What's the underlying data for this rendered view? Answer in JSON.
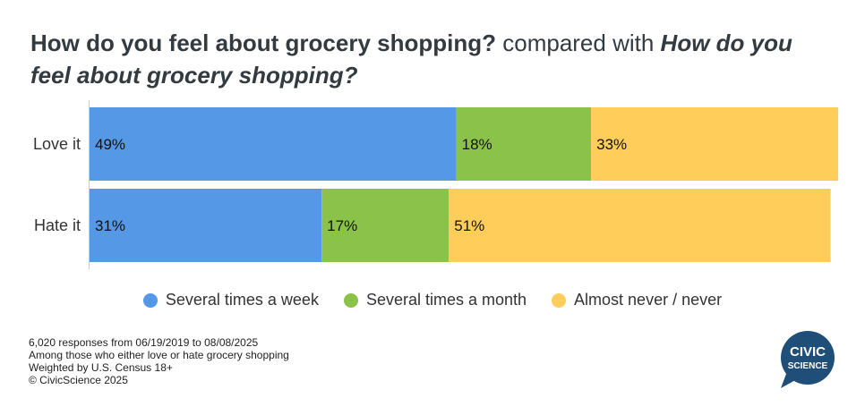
{
  "title": {
    "part1": "How do you feel about grocery shopping?",
    "part2": " compared with ",
    "part3": "How do you feel about grocery shopping?"
  },
  "chart_data": {
    "type": "bar",
    "orientation": "horizontal",
    "stacked": true,
    "categories": [
      "Love it",
      "Hate it"
    ],
    "series": [
      {
        "name": "Several times a week",
        "values": [
          49,
          31
        ],
        "color": "#5599e6"
      },
      {
        "name": "Several times a month",
        "values": [
          18,
          17
        ],
        "color": "#8bc34a"
      },
      {
        "name": "Almost never / never",
        "values": [
          33,
          51
        ],
        "color": "#ffcd5a"
      }
    ],
    "data_labels": [
      [
        "49%",
        "31%"
      ],
      [
        "18%",
        "17%"
      ],
      [
        "33%",
        "51%"
      ]
    ],
    "xlim": [
      0,
      100
    ],
    "legend_position": "bottom"
  },
  "footer": {
    "line1": "6,020 responses from 06/19/2019  to 08/08/2025",
    "line2": "Among those who either love or hate grocery shopping",
    "line3": "Weighted by U.S. Census 18+",
    "line4": "© CivicScience 2025"
  },
  "logo": {
    "line1": "CIVIC",
    "line2": "SCIENCE",
    "color": "#1f4e79"
  }
}
